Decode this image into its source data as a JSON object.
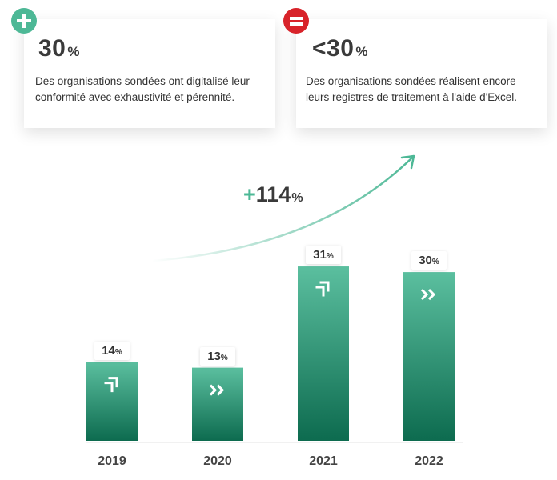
{
  "cards": [
    {
      "badge": "plus-icon",
      "value": "30",
      "unit": "%",
      "text": "Des organisations sondées ont digitalisé leur conformité avec exhaustivité et pérennité."
    },
    {
      "badge": "equals-icon",
      "value": "<30",
      "unit": "%",
      "text": "Des organisations sondées réalisent encore leurs registres de traitement à l'aide d'Excel."
    }
  ],
  "growth": {
    "sign": "+",
    "value": "114",
    "unit": "%"
  },
  "colors": {
    "bar_top": "#5bbf9f",
    "bar_bottom": "#0d6b4f",
    "plus": "#4db896",
    "equals": "#d8232a"
  },
  "chart_data": {
    "type": "bar",
    "categories": [
      "2019",
      "2020",
      "2021",
      "2022"
    ],
    "values": [
      14,
      13,
      31,
      30
    ],
    "value_labels": [
      "14",
      "13",
      "31",
      "30"
    ],
    "unit": "%",
    "icons": [
      "step-arrow-icon",
      "double-chevron-icon",
      "step-arrow-icon",
      "double-chevron-icon"
    ],
    "ylim": [
      0,
      33
    ],
    "title": "",
    "xlabel": "",
    "ylabel": ""
  }
}
